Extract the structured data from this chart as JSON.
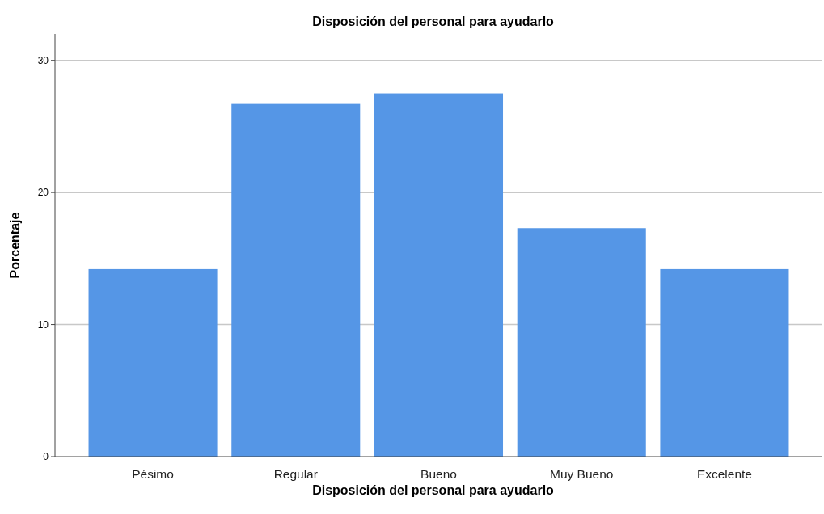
{
  "chart_data": {
    "type": "bar",
    "title": "Disposición del personal para ayudarlo",
    "xlabel": "Disposición del personal para ayudarlo",
    "ylabel": "Porcentaje",
    "categories": [
      "Pésimo",
      "Regular",
      "Bueno",
      "Muy Bueno",
      "Excelente"
    ],
    "values": [
      14.2,
      26.7,
      27.5,
      17.3,
      14.2
    ],
    "color": "#5596e6",
    "ylim": [
      0,
      32
    ],
    "yticks": [
      0,
      10,
      20,
      30
    ],
    "grid": "y"
  }
}
